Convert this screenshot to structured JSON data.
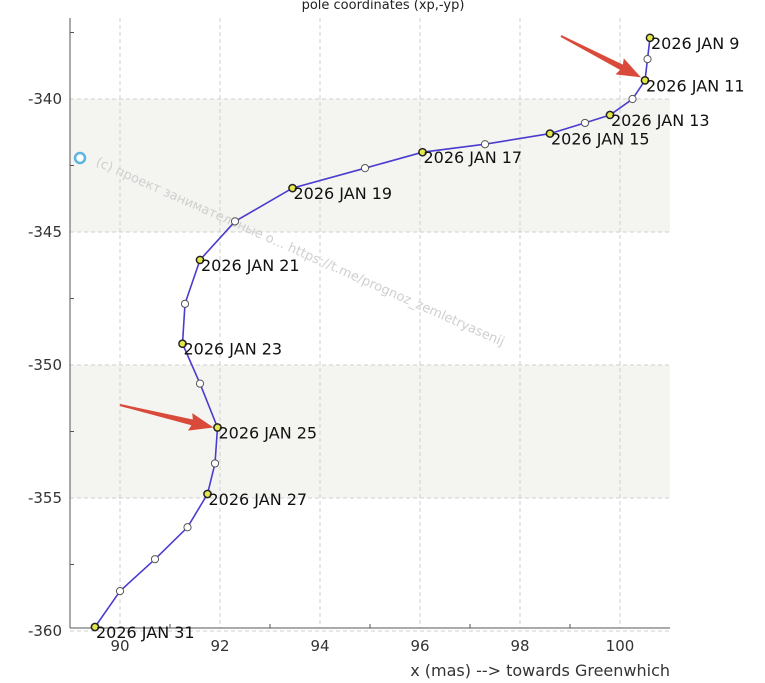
{
  "chart_data": {
    "type": "line",
    "title": "pole coordinates (xp,-yp)",
    "xlabel": "x (mas) --> towards Greenwhich",
    "ylabel": "",
    "xlim": [
      89,
      101
    ],
    "ylim": [
      -360,
      -337
    ],
    "xticks": [
      "90",
      "92",
      "94",
      "96",
      "98",
      "100"
    ],
    "yticks": [
      "-340",
      "-345",
      "-350",
      "-355",
      "-360"
    ],
    "grid": true,
    "colors": {
      "line": "#4a3ccf",
      "marker_fill": "#e4e84a",
      "marker_edge": "#222222",
      "band": "#f4f4f1",
      "arrow": "#d94a3a",
      "dot": "#5cb4e0"
    },
    "points": [
      {
        "x": 100.6,
        "y": -337.7,
        "label": "2026 JAN 9"
      },
      {
        "x": 100.55,
        "y": -338.5
      },
      {
        "x": 100.5,
        "y": -339.3,
        "label": "2026 JAN 11"
      },
      {
        "x": 100.25,
        "y": -340.0
      },
      {
        "x": 99.8,
        "y": -340.6,
        "label": "2026 JAN 13"
      },
      {
        "x": 99.3,
        "y": -340.9
      },
      {
        "x": 98.6,
        "y": -341.3,
        "label": "2026 JAN 15"
      },
      {
        "x": 97.3,
        "y": -341.7
      },
      {
        "x": 96.05,
        "y": -342.0,
        "label": "2026 JAN 17"
      },
      {
        "x": 94.9,
        "y": -342.6
      },
      {
        "x": 93.45,
        "y": -343.35,
        "label": "2026 JAN 19"
      },
      {
        "x": 92.3,
        "y": -344.6
      },
      {
        "x": 91.6,
        "y": -346.05,
        "label": "2026 JAN 21"
      },
      {
        "x": 91.3,
        "y": -347.7
      },
      {
        "x": 91.25,
        "y": -349.2,
        "label": "2026 JAN 23"
      },
      {
        "x": 91.6,
        "y": -350.7
      },
      {
        "x": 91.95,
        "y": -352.35,
        "label": "2026 JAN 25"
      },
      {
        "x": 91.9,
        "y": -353.7
      },
      {
        "x": 91.75,
        "y": -354.85,
        "label": "2026 JAN 27"
      },
      {
        "x": 91.35,
        "y": -356.1
      },
      {
        "x": 90.7,
        "y": -357.3
      },
      {
        "x": 90.0,
        "y": -358.5
      },
      {
        "x": 89.5,
        "y": -359.85,
        "label": "2026 JAN 31"
      }
    ],
    "arrows_point_to": [
      "2026 JAN 11",
      "2026 JAN 25"
    ],
    "watermark": "(с) проект занимательные о... https://t.me/prognoz_zemletryasenij"
  }
}
